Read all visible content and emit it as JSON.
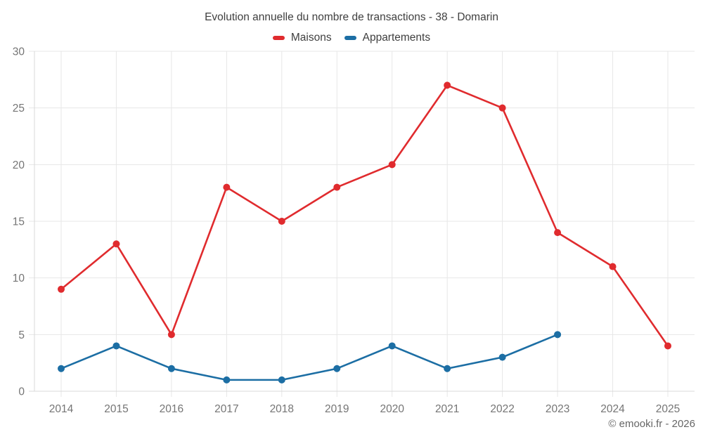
{
  "title": "Evolution annuelle du nombre de transactions - 38 - Domarin",
  "copyright": "© emooki.fr - 2026",
  "chart_data": {
    "type": "line",
    "categories": [
      "2014",
      "2015",
      "2016",
      "2017",
      "2018",
      "2019",
      "2020",
      "2021",
      "2022",
      "2023",
      "2024",
      "2025"
    ],
    "series": [
      {
        "name": "Maisons",
        "color": "#e02b2e",
        "values": [
          9,
          13,
          5,
          18,
          15,
          18,
          20,
          27,
          25,
          14,
          11,
          4
        ]
      },
      {
        "name": "Appartements",
        "color": "#1c6ea4",
        "values": [
          2,
          4,
          2,
          1,
          1,
          2,
          4,
          2,
          3,
          5,
          null,
          null
        ]
      }
    ],
    "title": "Evolution annuelle du nombre de transactions - 38 - Domarin",
    "xlabel": "",
    "ylabel": "",
    "ylim": [
      0,
      30
    ],
    "yticks": [
      0,
      5,
      10,
      15,
      20,
      25,
      30
    ],
    "grid": true,
    "grid_color": "#e7e7e7",
    "axis_color": "#d9d9d9",
    "legend_position": "top",
    "marker": "circle"
  }
}
